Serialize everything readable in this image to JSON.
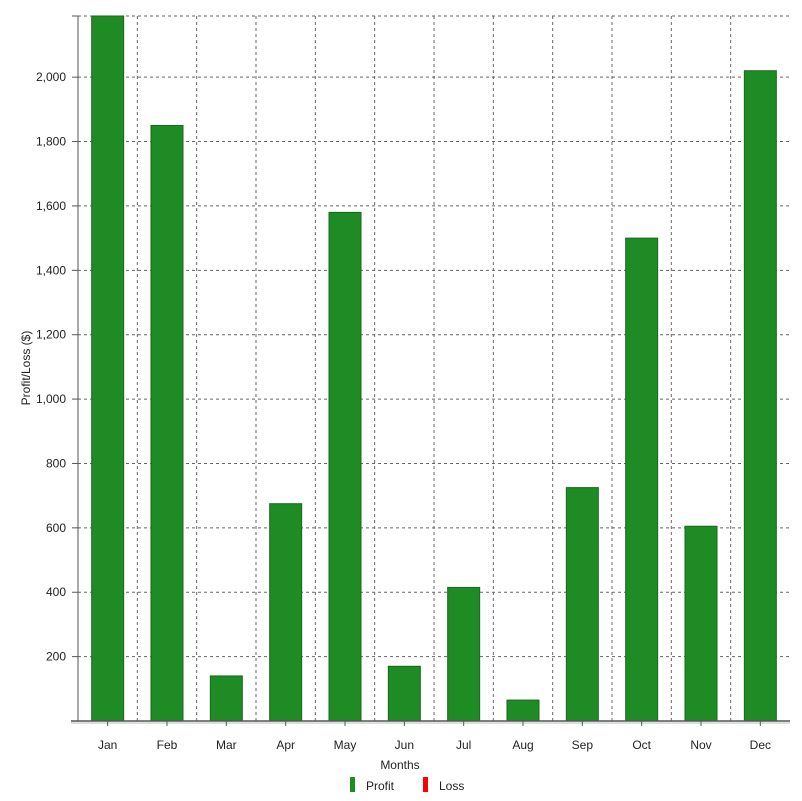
{
  "chart_data": {
    "type": "bar",
    "xlabel": "Months",
    "ylabel": "Profit/Loss ($)",
    "categories": [
      "Jan",
      "Feb",
      "Mar",
      "Apr",
      "May",
      "Jun",
      "Jul",
      "Aug",
      "Sep",
      "Oct",
      "Nov",
      "Dec"
    ],
    "series": [
      {
        "name": "Profit",
        "color": "#1f8b24",
        "values": [
          2190,
          1850,
          140,
          675,
          1580,
          170,
          415,
          65,
          725,
          1500,
          605,
          2020
        ]
      },
      {
        "name": "Loss",
        "color": "#ff0000",
        "values": [
          0,
          0,
          0,
          0,
          0,
          0,
          0,
          0,
          0,
          0,
          0,
          0
        ]
      }
    ],
    "ylim": [
      0,
      2190
    ],
    "yticks": [
      200,
      400,
      600,
      800,
      1000,
      1200,
      1400,
      1600,
      1800,
      2000
    ],
    "ytick_labels": [
      "200",
      "400",
      "600",
      "800",
      "1,000",
      "1,200",
      "1,400",
      "1,600",
      "1,800",
      "2,000"
    ],
    "grid": true,
    "legend_position": "bottom-center"
  }
}
